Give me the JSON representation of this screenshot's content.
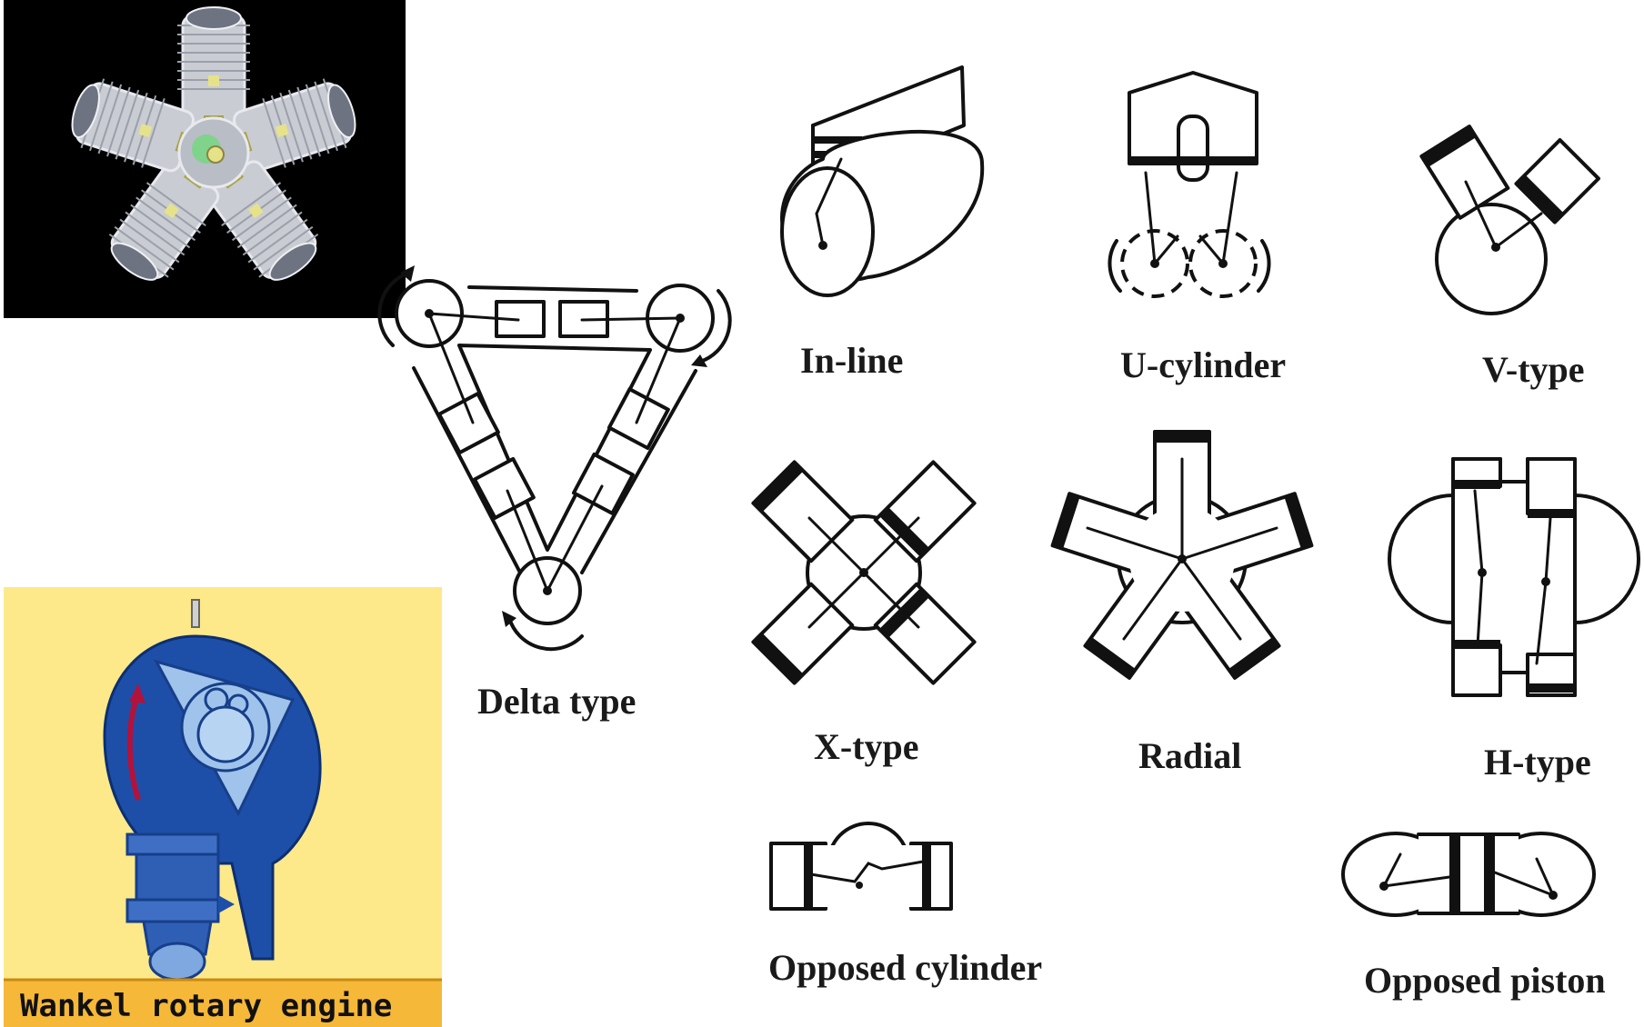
{
  "labels": {
    "inline": "In-line",
    "ucyl": "U-cylinder",
    "vtype": "V-type",
    "delta": "Delta type",
    "xtype": "X-type",
    "radial": "Radial",
    "htype": "H-type",
    "opcyl": "Opposed cylinder",
    "oppist": "Opposed piston",
    "wankel": "Wankel rotary engine"
  },
  "colors": {
    "ink": "#111111",
    "photo_background": "#000000",
    "radial_metal": "#c9ccd2",
    "radial_rod": "#e6e28a",
    "wankel_background": "#fde98a",
    "wankel_housing": "#1d4fa8",
    "wankel_rotor": "#9fc3ea",
    "wankel_arrow": "#b3123b"
  }
}
